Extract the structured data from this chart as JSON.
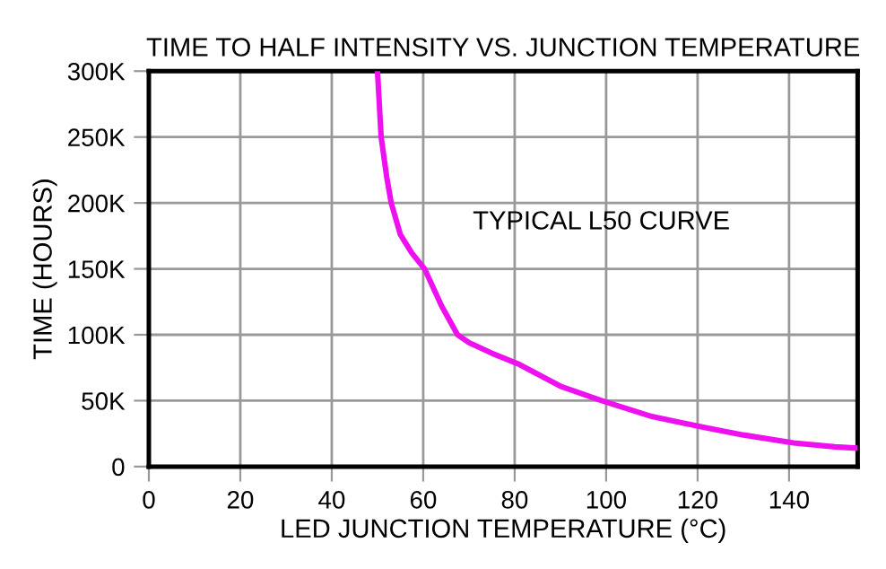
{
  "chart_data": {
    "type": "line",
    "title": "TIME TO HALF INTENSITY VS. JUNCTION TEMPERATURE",
    "xlabel": "LED JUNCTION TEMPERATURE (°C)",
    "ylabel": "TIME (HOURS)",
    "annotations": [
      "TYPICAL L50 CURVE"
    ],
    "series": [
      {
        "color": "#ee10ee",
        "x": [
          50,
          50.8,
          52,
          53,
          55,
          57.5,
          60.3,
          64,
          67.5,
          70,
          75,
          80.7,
          90,
          99,
          110,
          121,
          130,
          141,
          150,
          155
        ],
        "values": [
          300000,
          250000,
          220000,
          200000,
          176000,
          162000,
          150000,
          122000,
          100000,
          94000,
          86000,
          78000,
          61000,
          50000,
          38000,
          30000,
          24000,
          18000,
          15000,
          14000
        ]
      }
    ],
    "xlim": [
      0,
      155
    ],
    "xticks": [
      0,
      20,
      40,
      60,
      80,
      100,
      120,
      140
    ],
    "ylim": [
      0,
      300000
    ],
    "yticks": [
      {
        "value": 0,
        "label": "0"
      },
      {
        "value": 50000,
        "label": "50K"
      },
      {
        "value": 100000,
        "label": "100K"
      },
      {
        "value": 150000,
        "label": "150K"
      },
      {
        "value": 200000,
        "label": "200K"
      },
      {
        "value": 250000,
        "label": "250K"
      },
      {
        "value": 300000,
        "label": "300K"
      }
    ],
    "grid": true,
    "marker": "none",
    "line_style": "solid"
  }
}
